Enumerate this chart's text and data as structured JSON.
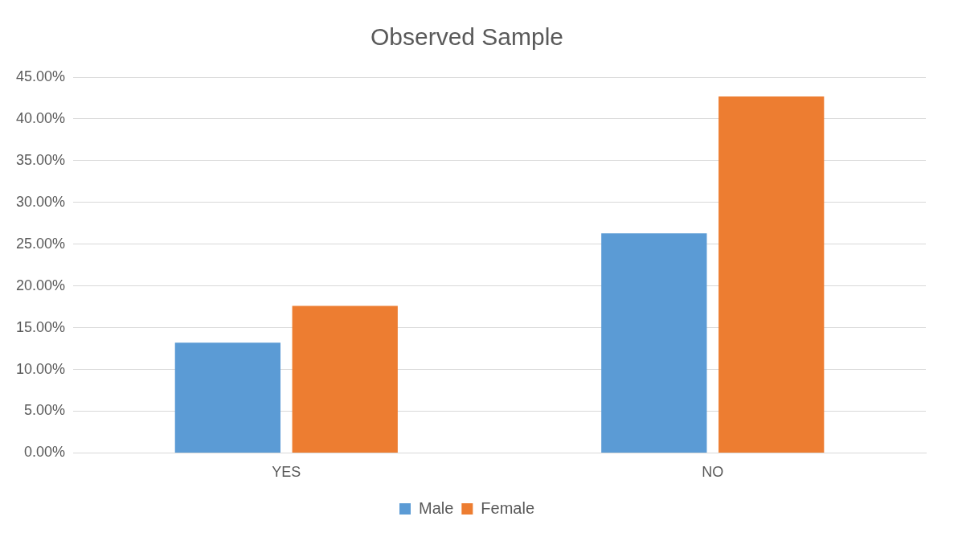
{
  "chart_data": {
    "type": "bar",
    "title": "Observed Sample",
    "categories": [
      "YES",
      "NO"
    ],
    "series": [
      {
        "name": "Male",
        "color": "#5b9bd5",
        "values": [
          13.2,
          26.3
        ]
      },
      {
        "name": "Female",
        "color": "#ed7d31",
        "values": [
          17.6,
          42.7
        ]
      }
    ],
    "ylim": [
      0,
      45
    ],
    "yticks": [
      {
        "value": 0,
        "label": "0.00%"
      },
      {
        "value": 5,
        "label": "5.00%"
      },
      {
        "value": 10,
        "label": "10.00%"
      },
      {
        "value": 15,
        "label": "15.00%"
      },
      {
        "value": 20,
        "label": "20.00%"
      },
      {
        "value": 25,
        "label": "25.00%"
      },
      {
        "value": 30,
        "label": "30.00%"
      },
      {
        "value": 35,
        "label": "35.00%"
      },
      {
        "value": 40,
        "label": "40.00%"
      },
      {
        "value": 45,
        "label": "45.00%"
      }
    ],
    "grid": "y",
    "legend": "bottom"
  }
}
